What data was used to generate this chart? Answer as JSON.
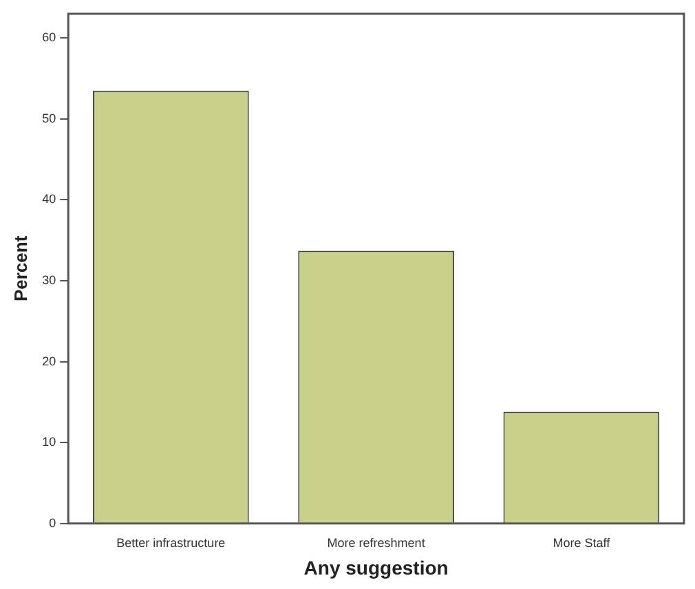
{
  "chart_data": {
    "type": "bar",
    "xlabel": "Any suggestion",
    "ylabel": "Percent",
    "categories": [
      "Better infrastructure",
      "More refreshment",
      "More Staff"
    ],
    "values": [
      53.5,
      33.7,
      13.8
    ],
    "color": "#c8d08a",
    "ylim": [
      0,
      63
    ],
    "yticks": [
      0,
      10,
      20,
      30,
      40,
      50,
      60
    ],
    "grid": false,
    "legend": false
  }
}
